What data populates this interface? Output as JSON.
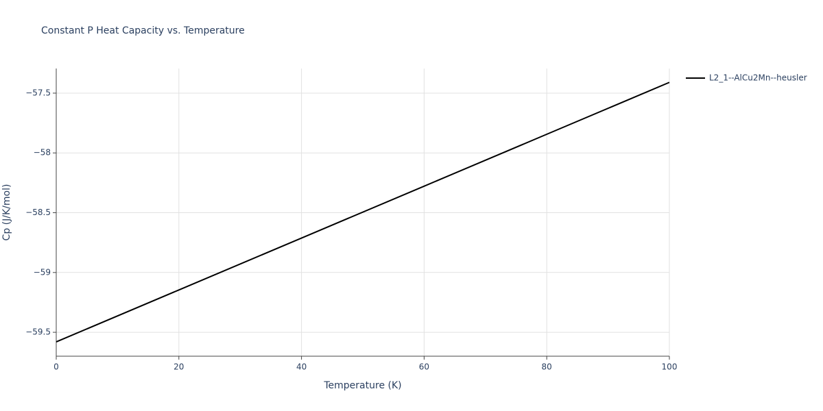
{
  "chart_data": {
    "type": "line",
    "title": "Constant P Heat Capacity vs. Temperature",
    "x_label": "Temperature (K)",
    "y_label": "Cp (J/K/mol)",
    "x": [
      0,
      20,
      40,
      60,
      80,
      100
    ],
    "series": [
      {
        "name": "L2_1--AlCu2Mn--heusler",
        "color": "#000000",
        "values": [
          -59.58,
          -59.146,
          -58.712,
          -58.278,
          -57.844,
          -57.41
        ]
      }
    ],
    "xlim": [
      0,
      100
    ],
    "xticks": [
      0,
      20,
      40,
      60,
      80,
      100
    ],
    "ylim": [
      -59.7,
      -57.294
    ],
    "yticks": [
      {
        "value": -59.5,
        "label": "−59.5"
      },
      {
        "value": -59,
        "label": "−59"
      },
      {
        "value": -58.5,
        "label": "−58.5"
      },
      {
        "value": -58,
        "label": "−58"
      },
      {
        "value": -57.5,
        "label": "−57.5"
      }
    ],
    "grid": true,
    "legend": "right"
  }
}
